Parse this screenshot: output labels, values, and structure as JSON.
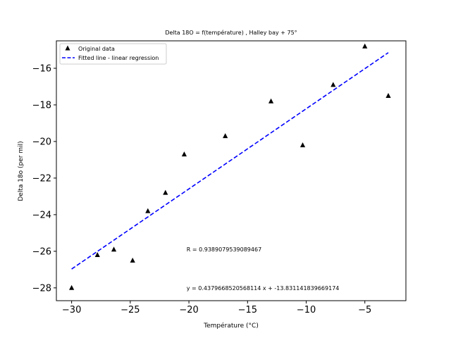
{
  "chart_data": {
    "type": "scatter",
    "title": "Delta 18O = f(température) , Halley bay + 75°",
    "xlabel": "Température (°C)",
    "ylabel": "Delta 18o (per mil)",
    "xlim": [
      -31.3,
      -1.5
    ],
    "ylim": [
      -28.7,
      -14.5
    ],
    "x_ticks": [
      -30,
      -25,
      -20,
      -15,
      -10,
      -5
    ],
    "y_ticks": [
      -28,
      -26,
      -24,
      -22,
      -20,
      -18,
      -16
    ],
    "x_tick_labels": [
      "−30",
      "−25",
      "−20",
      "−15",
      "−10",
      "−5"
    ],
    "y_tick_labels": [
      "−28",
      "−26",
      "−24",
      "−22",
      "−20",
      "−18",
      "−16"
    ],
    "legend_position": "upper-left",
    "grid": false,
    "series": [
      {
        "name": "Original data",
        "kind": "scatter",
        "marker": "triangle-up",
        "color": "#000000",
        "points": [
          {
            "x": -30.0,
            "y": -28.0
          },
          {
            "x": -27.8,
            "y": -26.2
          },
          {
            "x": -26.4,
            "y": -25.9
          },
          {
            "x": -24.8,
            "y": -26.5
          },
          {
            "x": -23.5,
            "y": -23.8
          },
          {
            "x": -22.0,
            "y": -22.8
          },
          {
            "x": -20.4,
            "y": -20.7
          },
          {
            "x": -16.9,
            "y": -19.7
          },
          {
            "x": -13.0,
            "y": -17.8
          },
          {
            "x": -10.3,
            "y": -20.2
          },
          {
            "x": -7.7,
            "y": -16.9
          },
          {
            "x": -5.0,
            "y": -14.8
          },
          {
            "x": -3.0,
            "y": -17.5
          }
        ]
      },
      {
        "name": "Fitted line - linear regression",
        "kind": "line",
        "style": "dashed",
        "color": "#0000ff",
        "slope": 0.4379668520568114,
        "intercept": -13.831141839669174,
        "x_range": [
          -30.0,
          -3.0
        ]
      }
    ],
    "annotations": [
      {
        "text": "R = 0.9389079539089467",
        "x": -20.2,
        "y": -25.9
      },
      {
        "text": "y = 0.4379668520568114 x + -13.831141839669174",
        "x": -20.2,
        "y": -28.0
      }
    ]
  }
}
